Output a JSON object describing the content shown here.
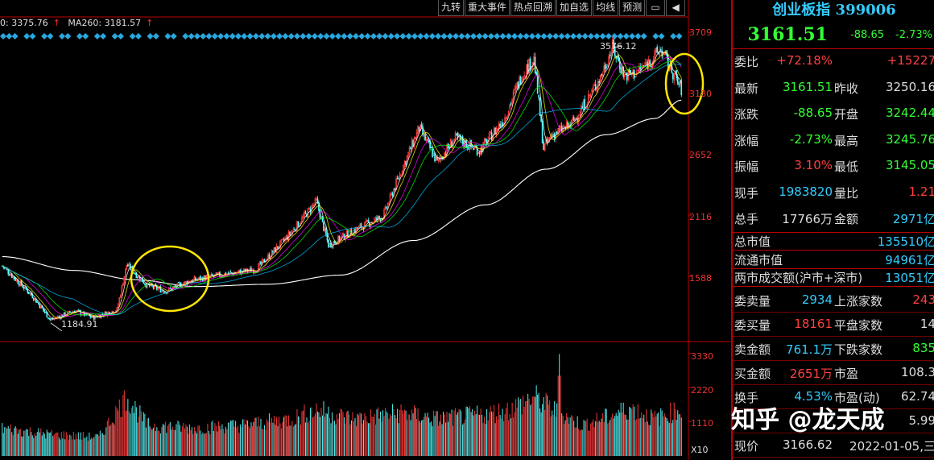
{
  "toolbar": {
    "buttons": [
      "九转",
      "重大事件",
      "热点回溯",
      "加自选",
      "均线",
      "预测"
    ],
    "icons": [
      "restore-icon",
      "expand-icon"
    ]
  },
  "legend": {
    "ma_a": "0: 3375.76",
    "ma_b": "MA260: 3181.57",
    "arrow": "↑"
  },
  "price_axis": [
    "3709",
    "3180",
    "2652",
    "2116",
    "1588"
  ],
  "volume_axis": [
    "3330",
    "2220",
    "1110",
    "X10"
  ],
  "annotations": {
    "high": "3576.12",
    "low": "1184.91"
  },
  "chart_data": {
    "type": "candlestick",
    "ylim": [
      1050,
      3780
    ],
    "yticks": [
      3709,
      3180,
      2652,
      2116,
      1588
    ],
    "annotated_high": 3576.12,
    "annotated_low": 1184.91,
    "volume_ylim": [
      0,
      3600
    ],
    "volume_ticks": [
      3330,
      2220,
      1110
    ],
    "volume_unit": "X10",
    "last_close": 3161.51
  },
  "panel": {
    "title": "创业板指 399006",
    "price": "3161.51",
    "change": "-88.65",
    "change_pct": "-2.73%",
    "rows": [
      {
        "l1": "委比",
        "v1": "+72.18%",
        "c1": "red",
        "l2": "",
        "v2": "+15227",
        "c2": "red"
      },
      {
        "l1": "最新",
        "v1": "3161.51",
        "c1": "green",
        "l2": "昨收",
        "v2": "3250.16",
        "c2": "white"
      },
      {
        "l1": "涨跌",
        "v1": "-88.65",
        "c1": "green",
        "l2": "开盘",
        "v2": "3242.44",
        "c2": "green"
      },
      {
        "l1": "涨幅",
        "v1": "-2.73%",
        "c1": "green",
        "l2": "最高",
        "v2": "3245.76",
        "c2": "green"
      },
      {
        "l1": "振幅",
        "v1": "3.10%",
        "c1": "red",
        "l2": "最低",
        "v2": "3145.05",
        "c2": "green"
      },
      {
        "l1": "现手",
        "v1": "1983820",
        "c1": "cyan",
        "l2": "量比",
        "v2": "1.21",
        "c2": "red"
      },
      {
        "l1": "总手",
        "v1": "17766万",
        "c1": "white",
        "l2": "金额",
        "v2": "2971亿",
        "c2": "cyan"
      }
    ],
    "rows2": [
      {
        "l": "总市值",
        "v": "135510亿"
      },
      {
        "l": "流通市值",
        "v": "94961亿"
      },
      {
        "l": "两市成交额(沪市+深市)",
        "v": "13051亿"
      }
    ],
    "rows3": [
      {
        "l1": "委卖量",
        "v1": "2934",
        "c1": "cyan",
        "l2": "上涨家数",
        "v2": "243",
        "c2": "red"
      },
      {
        "l1": "委买量",
        "v1": "18161",
        "c1": "red",
        "l2": "平盘家数",
        "v2": "14",
        "c2": "white"
      },
      {
        "l1": "卖金额",
        "v1": "761.1万",
        "c1": "cyan",
        "l2": "下跌家数",
        "v2": "835",
        "c2": "green"
      },
      {
        "l1": "买金额",
        "v1": "2651万",
        "c1": "red",
        "l2": "市盈",
        "v2": "108.3",
        "c2": "white"
      },
      {
        "l1": "换手",
        "v1": "4.53%",
        "c1": "cyan",
        "l2": "市盈(动)",
        "v2": "62.74",
        "c2": "white"
      },
      {
        "l1": "",
        "v1": "",
        "c1": "white",
        "l2": "",
        "v2": "5.99",
        "c2": "white"
      },
      {
        "l1": "现价",
        "v1": "3166.62",
        "c1": "white",
        "l2": "",
        "v2": "2022-01-05,三",
        "c2": "white"
      }
    ]
  },
  "watermark": "知乎 @龙天成",
  "colors": {
    "up": "#ff3c3c",
    "down": "#54ffff",
    "ma_yellow": "#ffff00",
    "ma260": "#ffffff"
  }
}
